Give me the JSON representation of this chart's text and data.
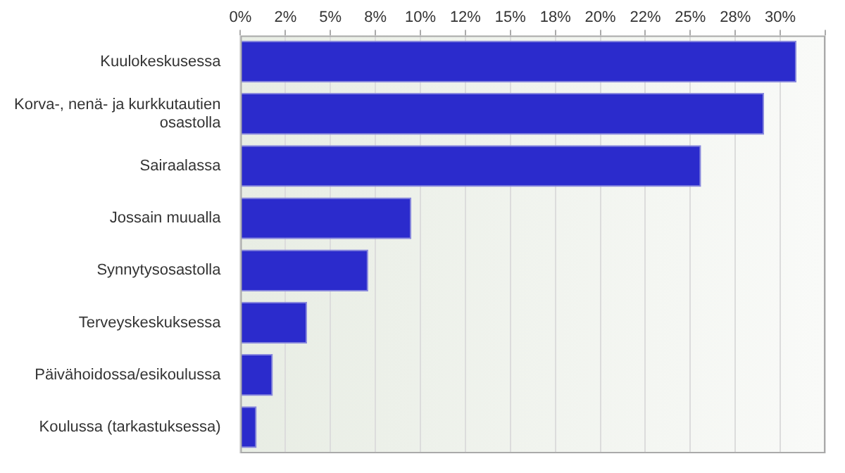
{
  "chart_data": {
    "type": "bar",
    "orientation": "horizontal",
    "categories": [
      "Kuulokeskusessa",
      "Korva-, nenä- ja kurkkutautien osastolla",
      "Sairaalassa",
      "Jossain muualla",
      "Synnytysosastolla",
      "Terveyskeskuksessa",
      "Päivähoidossa/esikoulussa",
      "Koulussa (tarkastuksessa)"
    ],
    "values": [
      30.9,
      29.1,
      25.6,
      9.5,
      7.1,
      3.7,
      1.8,
      0.9
    ],
    "color": "#2b2bcc",
    "xlim": [
      0,
      32.5
    ],
    "xticks": [
      {
        "value": 0,
        "label": "0%"
      },
      {
        "value": 2.5,
        "label": "2%"
      },
      {
        "value": 5,
        "label": "5%"
      },
      {
        "value": 7.5,
        "label": "8%"
      },
      {
        "value": 10,
        "label": "10%"
      },
      {
        "value": 12.5,
        "label": "12%"
      },
      {
        "value": 15,
        "label": "15%"
      },
      {
        "value": 17.5,
        "label": "18%"
      },
      {
        "value": 20,
        "label": "20%"
      },
      {
        "value": 22.5,
        "label": "22%"
      },
      {
        "value": 25,
        "label": "25%"
      },
      {
        "value": 27.5,
        "label": "28%"
      },
      {
        "value": 30,
        "label": "30%"
      },
      {
        "value": 32.5,
        "label": null
      }
    ],
    "grid": "x",
    "legend": false
  }
}
